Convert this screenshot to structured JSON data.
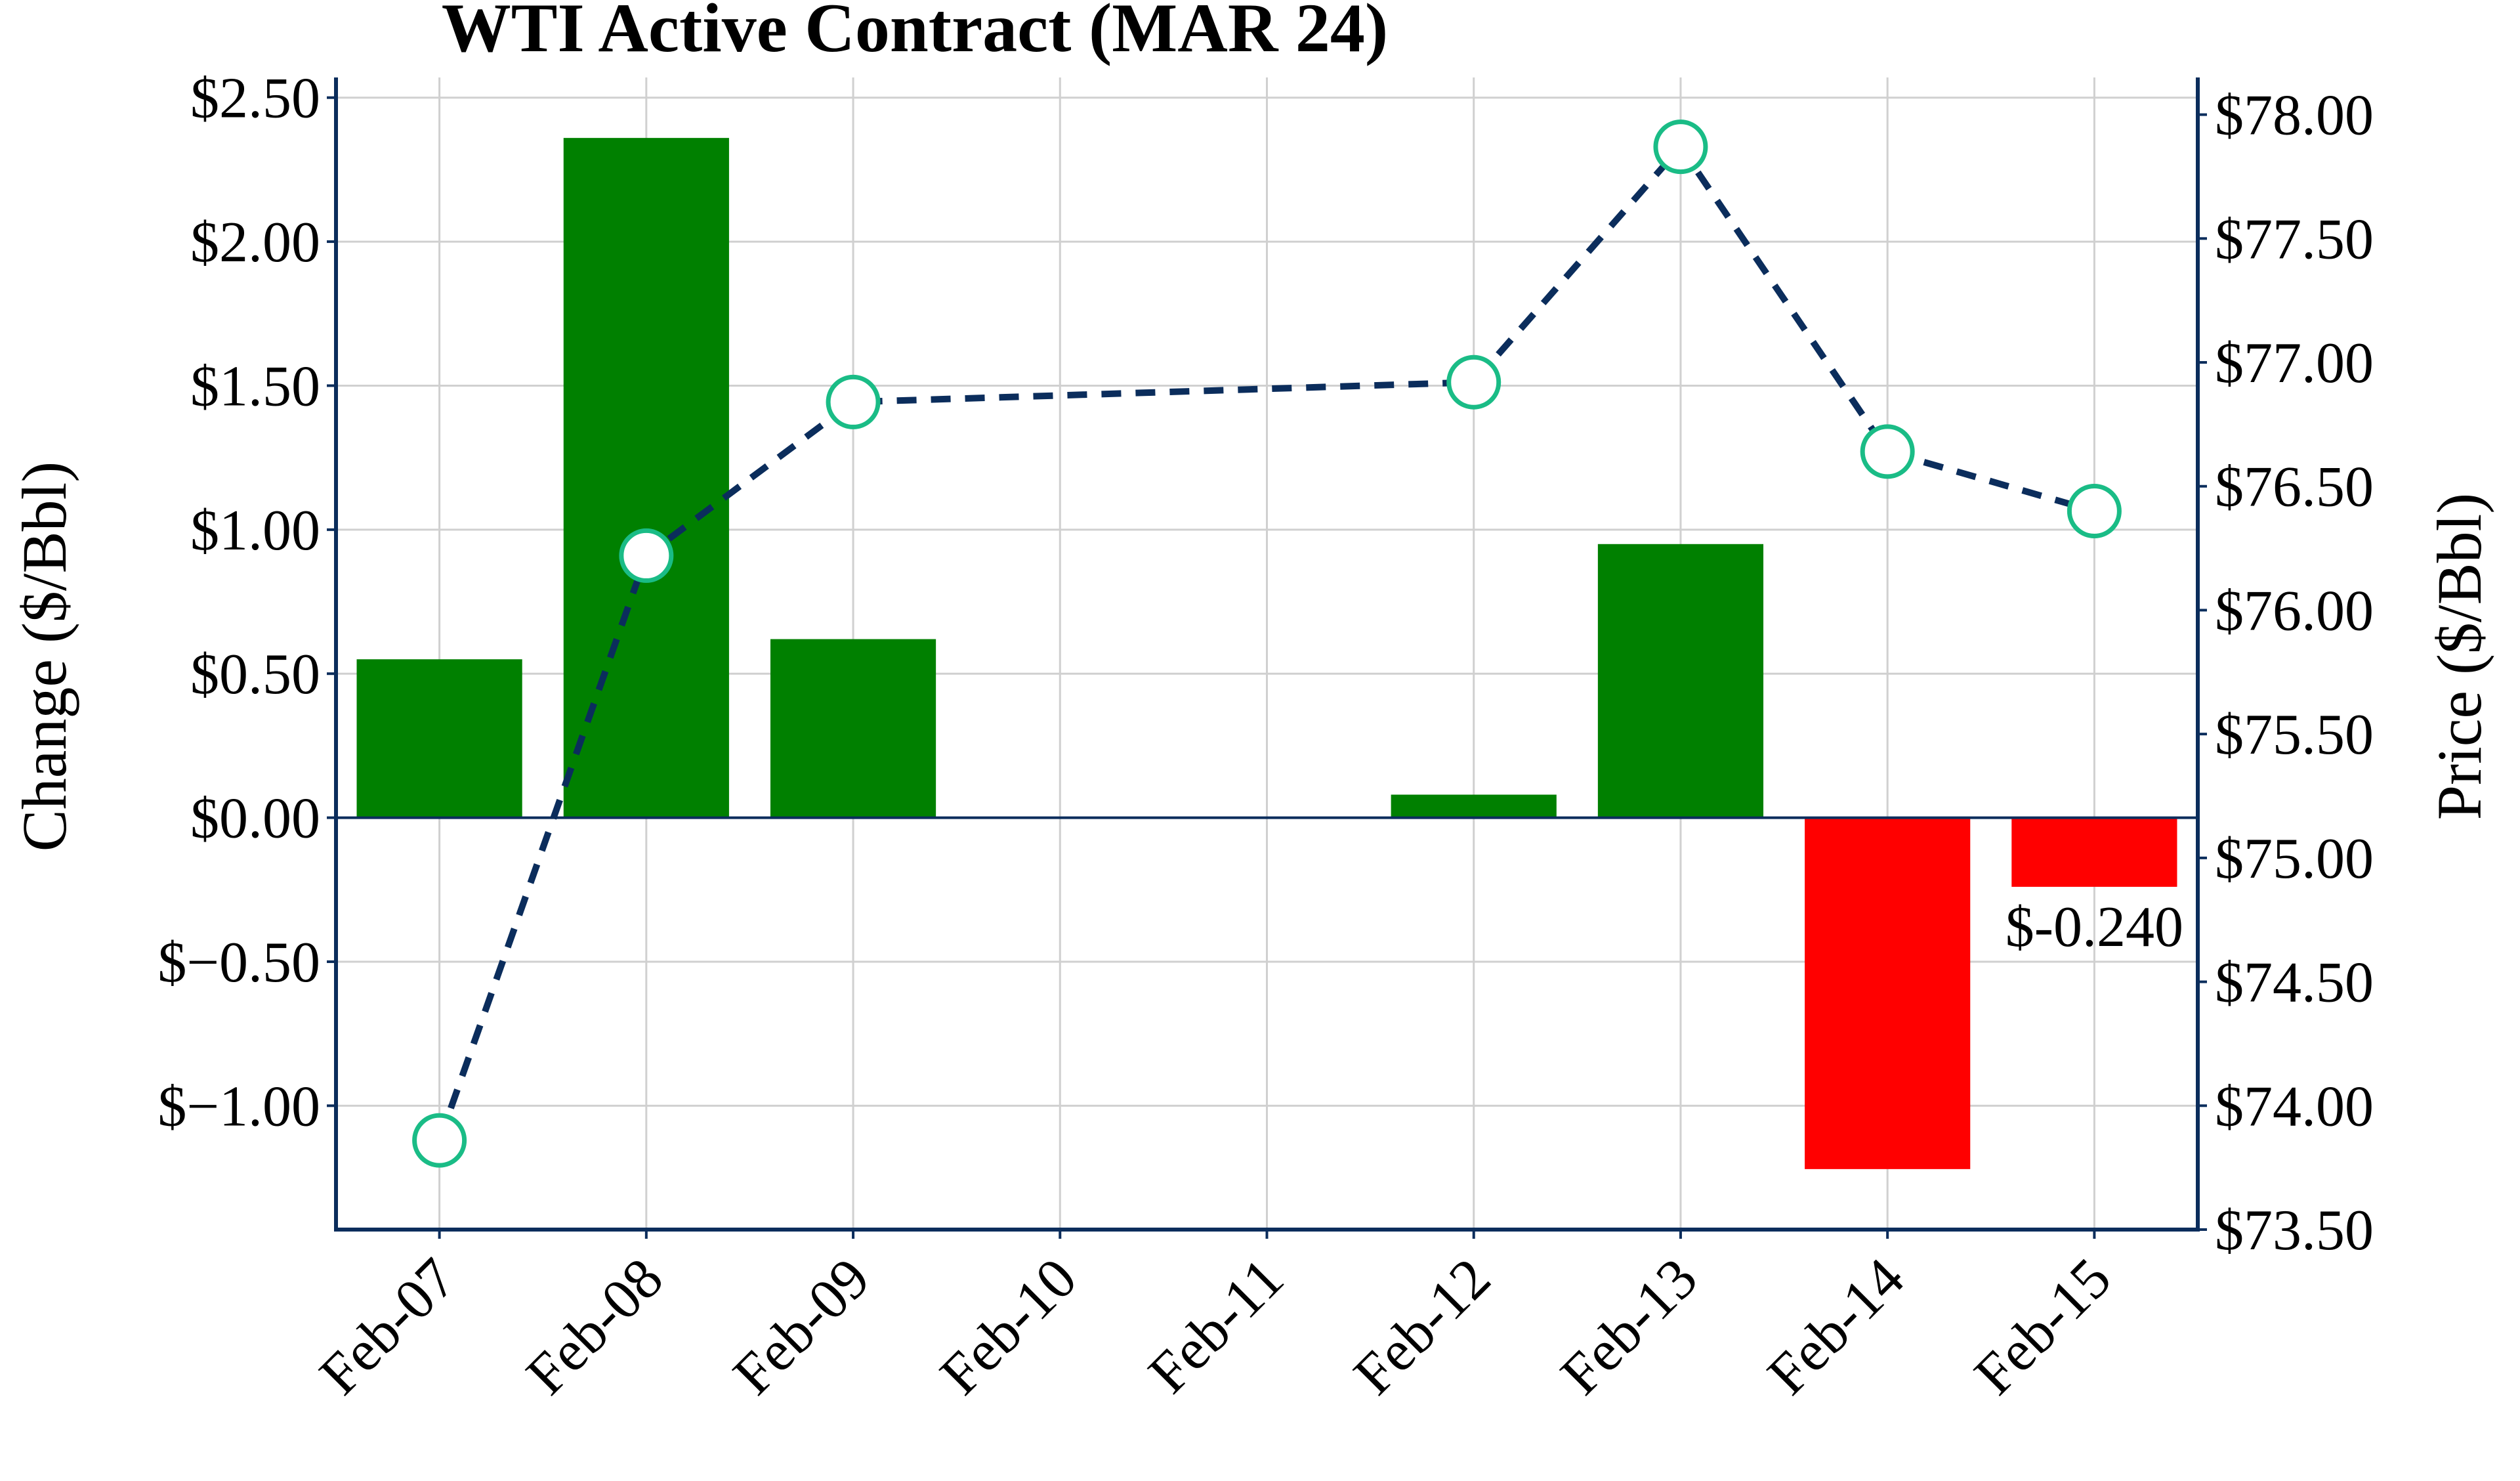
{
  "chart_data": {
    "type": "bar+line",
    "title": "WTI Active Contract (MAR 24)",
    "ylabel_left": "Change ($/Bbl)",
    "ylabel_right": "Price ($/Bbl)",
    "categories": [
      "Feb-07",
      "Feb-08",
      "Feb-09",
      "Feb-10",
      "Feb-11",
      "Feb-12",
      "Feb-13",
      "Feb-14",
      "Feb-15"
    ],
    "change": {
      "values": [
        0.55,
        2.36,
        0.62,
        null,
        null,
        0.08,
        0.95,
        -1.22,
        -0.24
      ],
      "ylim": [
        -1.43,
        2.57
      ],
      "ticks": [
        -1.0,
        -0.5,
        0.0,
        0.5,
        1.0,
        1.5,
        2.0,
        2.5
      ],
      "tick_labels": [
        "$−1.00",
        "$−0.50",
        "$0.00",
        "$0.50",
        "$1.00",
        "$1.50",
        "$2.00",
        "$2.50"
      ],
      "positive_color": "#008000",
      "negative_color": "#ff0000"
    },
    "price": {
      "values": [
        73.86,
        76.22,
        76.84,
        null,
        null,
        76.92,
        77.87,
        76.64,
        76.4
      ],
      "ylim": [
        73.5,
        78.15
      ],
      "ticks": [
        73.5,
        74.0,
        74.5,
        75.0,
        75.5,
        76.0,
        76.5,
        77.0,
        77.5,
        78.0
      ],
      "tick_labels": [
        "$73.50",
        "$74.00",
        "$74.50",
        "$75.00",
        "$75.50",
        "$76.00",
        "$76.50",
        "$77.00",
        "$77.50",
        "$78.00"
      ],
      "line_color": "#0b2d5c",
      "marker_edge": "#1abc86",
      "marker_fill": "#ffffff"
    },
    "annotations": [
      {
        "category": "Feb-15",
        "text": "$-0.240"
      }
    ],
    "grid": true,
    "axis_color": "#0b2d5c"
  }
}
